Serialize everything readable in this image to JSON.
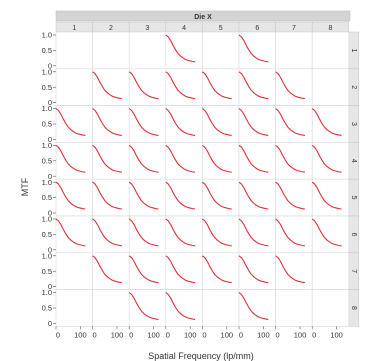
{
  "chart_data": {
    "type": "line",
    "facet_layout": "grid",
    "column_facet": {
      "label": "Die X",
      "levels": [
        "1",
        "2",
        "3",
        "4",
        "5",
        "6",
        "7",
        "8"
      ]
    },
    "row_facet": {
      "label": "",
      "levels": [
        "1",
        "2",
        "3",
        "4",
        "5",
        "6",
        "7",
        "8"
      ]
    },
    "xlabel": "Spatial Frequency (lp/mm)",
    "ylabel": "MTF",
    "xlim": [
      0,
      150
    ],
    "ylim": [
      0,
      1.0
    ],
    "x_ticks": [
      0,
      100
    ],
    "y_ticks": [
      0,
      0.5,
      1.0
    ],
    "line_color": "#e0303a",
    "grid": true,
    "present_panels": [
      [
        false,
        false,
        false,
        true,
        false,
        true,
        false,
        false
      ],
      [
        false,
        true,
        true,
        true,
        true,
        true,
        true,
        false
      ],
      [
        true,
        true,
        true,
        true,
        true,
        true,
        true,
        true
      ],
      [
        true,
        true,
        true,
        true,
        true,
        true,
        true,
        true
      ],
      [
        true,
        true,
        true,
        true,
        true,
        true,
        true,
        true
      ],
      [
        true,
        true,
        true,
        true,
        true,
        true,
        true,
        true
      ],
      [
        false,
        true,
        true,
        true,
        true,
        true,
        true,
        false
      ],
      [
        false,
        false,
        true,
        true,
        false,
        true,
        false,
        false
      ]
    ],
    "curve": {
      "x": [
        0,
        10,
        20,
        30,
        40,
        50,
        60,
        70,
        80,
        90,
        100,
        110,
        120
      ],
      "y": [
        1.0,
        0.94,
        0.82,
        0.66,
        0.52,
        0.4,
        0.32,
        0.26,
        0.21,
        0.18,
        0.16,
        0.14,
        0.13
      ]
    }
  },
  "labels": {
    "column_facet_title": "Die X",
    "ylabel": "MTF",
    "xlabel": "Spatial Frequency (lp/mm)",
    "x_tick_0": "0",
    "x_tick_100": "100",
    "y_tick_0": "0",
    "y_tick_05": "0.5",
    "y_tick_10": "1.0"
  }
}
